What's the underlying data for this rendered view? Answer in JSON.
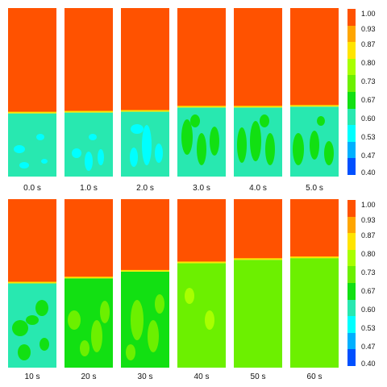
{
  "rows": [
    {
      "panels": [
        {
          "label": "0.0 s",
          "top": 0.0,
          "bottom": 0.6,
          "blob": 0.53
        },
        {
          "label": "1.0 s",
          "top": 0.0,
          "bottom": 0.6,
          "blob": 0.53
        },
        {
          "label": "2.0 s",
          "top": 0.0,
          "bottom": 0.6,
          "blob": 0.53
        },
        {
          "label": "3.0 s",
          "top": 0.0,
          "bottom": 0.6,
          "blob": 0.67
        },
        {
          "label": "4.0 s",
          "top": 0.0,
          "bottom": 0.6,
          "blob": 0.67
        },
        {
          "label": "5.0 s",
          "top": 0.0,
          "bottom": 0.6,
          "blob": 0.67
        }
      ]
    },
    {
      "panels": [
        {
          "label": "10 s",
          "top": 0.0,
          "bottom": 0.6,
          "blob": 0.67
        },
        {
          "label": "20 s",
          "top": 0.0,
          "bottom": 0.67,
          "blob": 0.73
        },
        {
          "label": "30 s",
          "top": 0.0,
          "bottom": 0.67,
          "blob": 0.73
        },
        {
          "label": "40 s",
          "top": 0.0,
          "bottom": 0.73,
          "blob": 0.8
        },
        {
          "label": "50 s",
          "top": 0.0,
          "bottom": 0.73,
          "blob": 0.73
        },
        {
          "label": "60 s",
          "top": 0.0,
          "bottom": 0.73,
          "blob": 0.73
        }
      ]
    }
  ],
  "colorbar": {
    "ticks": [
      "1.00",
      "0.93",
      "0.87",
      "0.80",
      "0.73",
      "0.67",
      "0.60",
      "0.53",
      "0.47",
      "0.40"
    ],
    "colors": [
      "#ff5200",
      "#ffa500",
      "#ffe400",
      "#a8ff00",
      "#6cf000",
      "#12e012",
      "#28e8b0",
      "#00ffff",
      "#00b0ff",
      "#0050ff"
    ]
  }
}
